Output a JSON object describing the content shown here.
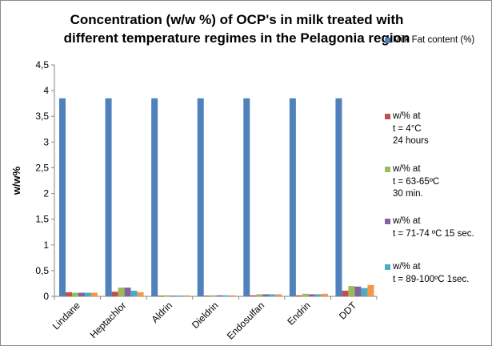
{
  "chart_data": {
    "type": "bar",
    "title": "Concentration (w/w %) of OCP's in milk treated with different temperature regimes in the Pelagonia region",
    "xlabel": "",
    "ylabel": "w/w%",
    "ylim": [
      0,
      4.5
    ],
    "yticks": [
      "0",
      "0,5",
      "1",
      "1,5",
      "2",
      "2,5",
      "3",
      "3,5",
      "4",
      "4,5"
    ],
    "ytick_values": [
      0,
      0.5,
      1,
      1.5,
      2,
      2.5,
      3,
      3.5,
      4,
      4.5
    ],
    "grid": false,
    "legend_position": "right",
    "categories": [
      "Lindane",
      "Heptachlor",
      "Aldrin",
      "Dieldrin",
      "Endosulfan",
      "Endrin",
      "DDT"
    ],
    "series": [
      {
        "name": "Milk Fat content (%)",
        "color": "#4f81bd",
        "values": [
          3.85,
          3.85,
          3.85,
          3.85,
          3.85,
          3.85,
          3.85
        ]
      },
      {
        "name": "w/%  at\nt = 4°C\n24 hours",
        "color": "#c0504d",
        "values": [
          0.08,
          0.09,
          0.01,
          0.01,
          0.02,
          0.02,
          0.11
        ]
      },
      {
        "name": "w/% at\nt = 63-65ºC\n30 min.",
        "color": "#9bbb59",
        "values": [
          0.07,
          0.17,
          0.02,
          0.02,
          0.04,
          0.05,
          0.2
        ]
      },
      {
        "name": "w/% at\nt = 71-74 ºC 15 sec.",
        "color": "#8064a2",
        "values": [
          0.07,
          0.17,
          0.01,
          0.02,
          0.04,
          0.04,
          0.19
        ]
      },
      {
        "name": "w/% at\nt = 89-100ºC 1sec.",
        "color": "#4bacc6",
        "values": [
          0.07,
          0.11,
          0.01,
          0.02,
          0.04,
          0.04,
          0.16
        ]
      },
      {
        "name": "",
        "color": "#f79646",
        "values": [
          0.07,
          0.08,
          0.02,
          0.02,
          0.04,
          0.05,
          0.22
        ]
      }
    ]
  }
}
